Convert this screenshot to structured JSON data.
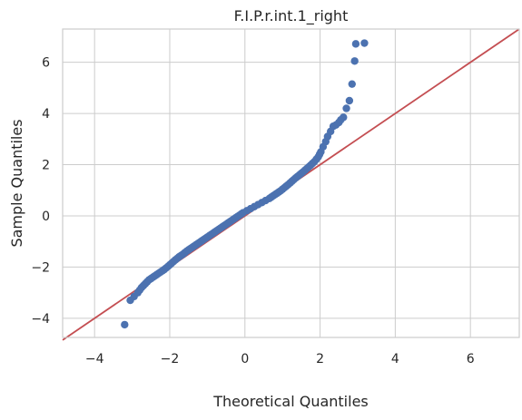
{
  "chart_data": {
    "type": "scatter",
    "title": "F.I.P.r.int.1_right",
    "xlabel": "Theoretical Quantiles",
    "ylabel": "Sample Quantiles",
    "xlim": [
      -4.85,
      7.3
    ],
    "ylim": [
      -4.75,
      7.3
    ],
    "xticks": [
      -4,
      -2,
      0,
      2,
      4,
      6
    ],
    "yticks": [
      -4,
      -2,
      0,
      2,
      4,
      6
    ],
    "grid": true,
    "colors": {
      "points": "#4c72b0",
      "reference_line": "#c44e52",
      "grid": "#cccccc",
      "spine": "#cccccc"
    },
    "reference_line": {
      "name": "45-degree line",
      "x": [
        -4.85,
        7.3
      ],
      "y": [
        -4.85,
        7.3
      ]
    },
    "series": [
      {
        "name": "sample quantiles",
        "x": [
          -3.2,
          -3.05,
          -2.95,
          -2.85,
          -2.75,
          -2.65,
          -2.55,
          -2.45,
          -2.35,
          -2.25,
          -2.15,
          -2.05,
          -1.95,
          -1.85,
          -1.75,
          -1.65,
          -1.55,
          -1.45,
          -1.35,
          -1.25,
          -1.15,
          -1.05,
          -0.95,
          -0.85,
          -0.75,
          -0.65,
          -0.55,
          -0.45,
          -0.35,
          -0.25,
          -0.15,
          -0.05,
          0.05,
          0.15,
          0.25,
          0.35,
          0.45,
          0.55,
          0.65,
          0.75,
          0.85,
          0.95,
          1.05,
          1.15,
          1.25,
          1.35,
          1.45,
          1.55,
          1.65,
          1.75,
          1.85,
          1.95,
          2.02,
          2.08,
          2.15,
          2.2,
          2.28,
          2.35,
          2.42,
          2.5,
          2.55,
          2.62,
          2.7,
          2.78,
          2.85,
          2.92,
          3.18
        ],
        "y": [
          -4.25,
          -3.3,
          -3.15,
          -3.0,
          -2.8,
          -2.65,
          -2.5,
          -2.4,
          -2.3,
          -2.2,
          -2.1,
          -1.98,
          -1.85,
          -1.72,
          -1.6,
          -1.5,
          -1.38,
          -1.28,
          -1.18,
          -1.08,
          -0.98,
          -0.88,
          -0.78,
          -0.68,
          -0.58,
          -0.48,
          -0.38,
          -0.28,
          -0.18,
          -0.08,
          0.02,
          0.12,
          0.2,
          0.28,
          0.36,
          0.44,
          0.52,
          0.6,
          0.68,
          0.78,
          0.88,
          0.98,
          1.1,
          1.22,
          1.35,
          1.48,
          1.6,
          1.72,
          1.85,
          1.98,
          2.12,
          2.3,
          2.5,
          2.7,
          2.9,
          3.1,
          3.3,
          3.5,
          3.55,
          3.65,
          3.75,
          3.85,
          4.2,
          4.5,
          5.15,
          6.05,
          6.75
        ]
      }
    ],
    "extra_points": [
      {
        "x": 2.95,
        "y": 6.72
      }
    ]
  }
}
